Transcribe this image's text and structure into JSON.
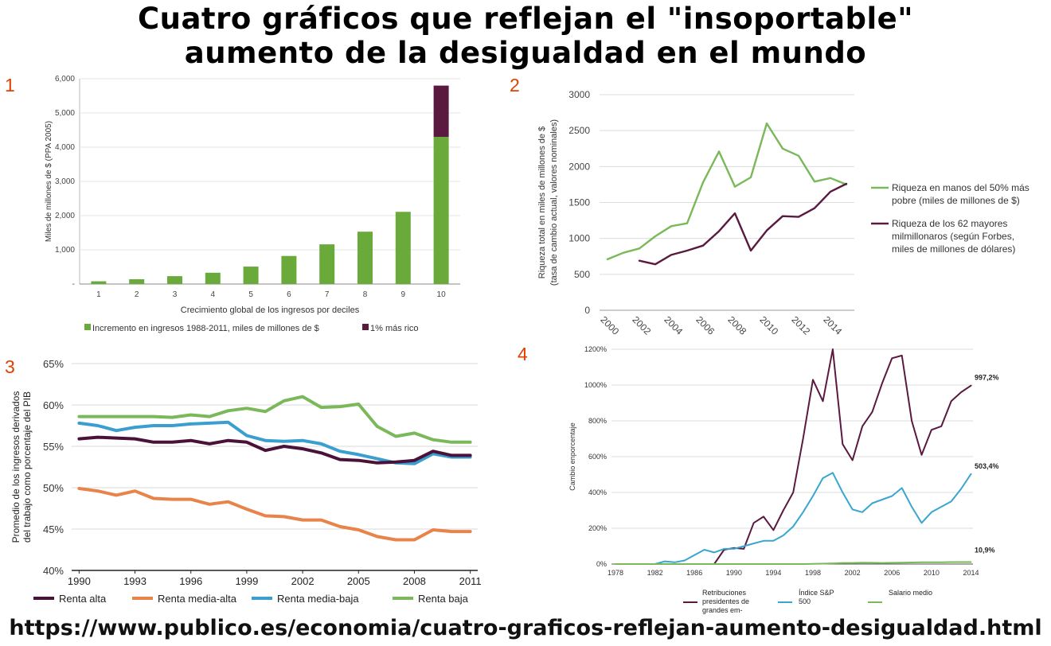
{
  "page": {
    "title_line1": "Cuatro gráficos que reflejan el \"insoportable\"",
    "title_line2": "aumento de la desigualdad en el mundo",
    "footer": "https://www.publico.es/economia/cuatro-graficos-reflejan-aumento-desigualdad.html"
  },
  "chart_data": [
    {
      "panel_label": "1",
      "type": "bar",
      "stacked": true,
      "xlabel": "Crecimiento global de los ingresos por deciles",
      "ylabel": "Miles de millones de $ (PPA 2005)",
      "ylim": [
        0,
        6000
      ],
      "yticks": [
        0,
        1000,
        2000,
        3000,
        4000,
        5000,
        6000
      ],
      "ytick_labels": [
        "-",
        "1,000",
        "2,000",
        "3,000",
        "4,000",
        "5,000",
        "6,000"
      ],
      "categories": [
        "1",
        "2",
        "3",
        "4",
        "5",
        "6",
        "7",
        "8",
        "9",
        "10"
      ],
      "series": [
        {
          "name": "Incremento en ingresos 1988-2011, miles de millones de $",
          "color": "#6aaa3a",
          "values": [
            80,
            140,
            230,
            330,
            510,
            820,
            1160,
            1530,
            2110,
            4300
          ]
        },
        {
          "name": "1% más rico",
          "color": "#5a1a40",
          "values": [
            0,
            0,
            0,
            0,
            0,
            0,
            0,
            0,
            0,
            1500
          ]
        }
      ],
      "legend": "bottom",
      "grid": true
    },
    {
      "panel_label": "2",
      "type": "line",
      "ylabel_line1": "Riqueza total en miles de millones de $",
      "ylabel_line2": "(tasa de cambio actual, valores nominales)",
      "ylim": [
        0,
        3000
      ],
      "yticks": [
        "0",
        "500",
        "1000",
        "1500",
        "2000",
        "2500",
        "3000"
      ],
      "xticks": [
        "2000",
        "2002",
        "2004",
        "2006",
        "2008",
        "2010",
        "2012",
        "2014"
      ],
      "x": [
        2000,
        2001,
        2002,
        2003,
        2004,
        2005,
        2006,
        2007,
        2008,
        2009,
        2010,
        2011,
        2012,
        2013,
        2014,
        2015
      ],
      "series": [
        {
          "name": "Riqueza en manos del 50% más pobre (miles de millones de $)",
          "legend_lines": [
            "Riqueza en manos del 50% más",
            "pobre (miles de millones de $)"
          ],
          "color": "#7ab85a",
          "values": [
            710,
            800,
            860,
            1030,
            1170,
            1210,
            1780,
            2210,
            1720,
            1850,
            2600,
            2250,
            2150,
            1790,
            1840,
            1750
          ]
        },
        {
          "name": "Riqueza de los 62 mayores milmillonaros (según Forbes, miles de millones de dólares)",
          "legend_lines": [
            "Riqueza de los 62 mayores",
            "milmillonaros (según Forbes,",
            "miles de millones de dólares)"
          ],
          "color": "#5a1a40",
          "values": [
            null,
            null,
            690,
            640,
            770,
            830,
            900,
            1100,
            1350,
            830,
            1110,
            1310,
            1300,
            1420,
            1650,
            1760
          ]
        }
      ],
      "legend": "right",
      "grid": true
    },
    {
      "panel_label": "3",
      "type": "line",
      "ylabel_line1": "Promedio de los ingresos derivados",
      "ylabel_line2": "del trabajo como porcentaje del PIB",
      "ylim": [
        40,
        65
      ],
      "yticks": [
        "40%",
        "45%",
        "50%",
        "55%",
        "60%",
        "65%"
      ],
      "xticks": [
        "1990",
        "1993",
        "1996",
        "1999",
        "2002",
        "2005",
        "2008",
        "2011"
      ],
      "x": [
        1990,
        1991,
        1992,
        1993,
        1994,
        1995,
        1996,
        1997,
        1998,
        1999,
        2000,
        2001,
        2002,
        2003,
        2004,
        2005,
        2006,
        2007,
        2008,
        2009,
        2010,
        2011
      ],
      "series": [
        {
          "name": "Renta alta",
          "color": "#4a1238",
          "values": [
            55.9,
            56.1,
            56.0,
            55.9,
            55.5,
            55.5,
            55.7,
            55.3,
            55.7,
            55.5,
            54.5,
            55.0,
            54.7,
            54.2,
            53.4,
            53.3,
            53.0,
            53.1,
            53.3,
            54.4,
            53.9,
            53.9
          ]
        },
        {
          "name": "Renta media-alta",
          "color": "#e8834a",
          "values": [
            49.9,
            49.6,
            49.1,
            49.6,
            48.7,
            48.6,
            48.6,
            48.0,
            48.3,
            47.4,
            46.6,
            46.5,
            46.1,
            46.1,
            45.3,
            44.9,
            44.1,
            43.7,
            43.7,
            44.9,
            44.7,
            44.7
          ]
        },
        {
          "name": "Renta media-baja",
          "color": "#3a9fd0",
          "values": [
            57.8,
            57.5,
            56.9,
            57.3,
            57.5,
            57.5,
            57.7,
            57.8,
            57.9,
            56.3,
            55.7,
            55.6,
            55.7,
            55.3,
            54.4,
            54.0,
            53.5,
            53.0,
            52.9,
            54.1,
            53.7,
            53.7
          ]
        },
        {
          "name": "Renta baja",
          "color": "#7ab85a",
          "values": [
            58.6,
            58.6,
            58.6,
            58.6,
            58.6,
            58.5,
            58.8,
            58.6,
            59.3,
            59.6,
            59.2,
            60.5,
            61.0,
            59.7,
            59.8,
            60.1,
            57.4,
            56.2,
            56.6,
            55.8,
            55.5,
            55.5
          ]
        }
      ],
      "legend": "bottom",
      "grid": true
    },
    {
      "panel_label": "4",
      "type": "line",
      "ylabel": "Cambio enporcentaje",
      "ylim": [
        0,
        1200
      ],
      "yticks": [
        "0%",
        "200%",
        "400%",
        "600%",
        "800%",
        "1000%",
        "1200%"
      ],
      "xticks": [
        "1978",
        "1982",
        "1986",
        "1990",
        "1994",
        "1998",
        "2002",
        "2006",
        "2010",
        "2014"
      ],
      "x": [
        1978,
        1979,
        1980,
        1981,
        1982,
        1983,
        1984,
        1985,
        1986,
        1987,
        1988,
        1989,
        1990,
        1991,
        1992,
        1993,
        1994,
        1995,
        1996,
        1997,
        1998,
        1999,
        2000,
        2001,
        2002,
        2003,
        2004,
        2005,
        2006,
        2007,
        2008,
        2009,
        2010,
        2011,
        2012,
        2013,
        2014
      ],
      "series": [
        {
          "name": "Retribuciones presidentes de grandes em-",
          "legend_lines": [
            "Retribuciones",
            "presidentes de",
            "grandes em-"
          ],
          "color": "#5a1a40",
          "end_label": "997,2%",
          "values": [
            0,
            0,
            0,
            0,
            0,
            0,
            0,
            0,
            0,
            0,
            0,
            80,
            90,
            85,
            230,
            265,
            190,
            300,
            400,
            700,
            1030,
            910,
            1230,
            670,
            580,
            770,
            850,
            1010,
            1150,
            1165,
            800,
            610,
            750,
            770,
            910,
            960,
            997
          ]
        },
        {
          "name": "Índice S&P 500",
          "legend_lines": [
            "Índice S&P",
            "500"
          ],
          "color": "#3aa6d0",
          "end_label": "503,4%",
          "values": [
            0,
            0,
            0,
            0,
            0,
            15,
            10,
            20,
            50,
            80,
            65,
            85,
            85,
            100,
            115,
            130,
            130,
            160,
            210,
            290,
            380,
            480,
            510,
            400,
            305,
            290,
            340,
            360,
            380,
            425,
            320,
            230,
            290,
            320,
            350,
            420,
            503
          ]
        },
        {
          "name": "Salario medio",
          "legend_lines": [
            "Salario medio"
          ],
          "color": "#7ab85a",
          "end_label": "10,9%",
          "values": [
            0,
            0,
            0,
            0,
            0,
            0,
            0,
            0,
            0,
            0,
            0,
            0,
            0,
            0,
            0,
            0,
            0,
            0,
            0,
            0,
            1,
            2,
            4,
            6,
            6,
            8,
            7,
            6,
            7,
            8,
            9,
            10,
            10,
            10,
            11,
            11,
            10.9
          ]
        }
      ],
      "legend": "bottom",
      "grid": true
    }
  ]
}
